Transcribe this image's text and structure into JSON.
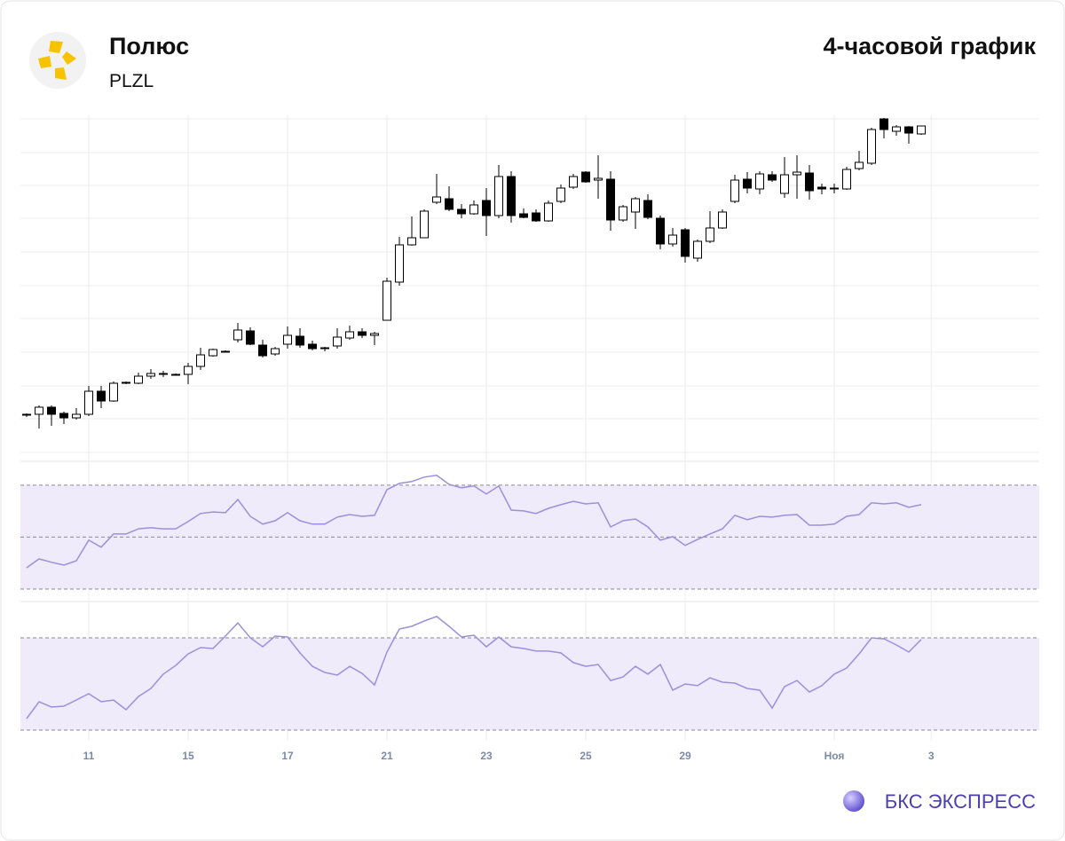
{
  "header": {
    "title": "Полюс",
    "ticker": "PLZL",
    "period": "4-часовой график"
  },
  "footer": {
    "brand": "БКС ЭКСПРЕСС"
  },
  "chart_data": [
    {
      "type": "candlestick",
      "up_color": "#ffffff",
      "down_color": "#000000",
      "xlim": [
        -0.5,
        81.5
      ],
      "ylim": [
        0,
        385
      ],
      "ygrid": [
        5,
        43,
        80,
        118,
        156,
        193,
        231,
        269,
        306,
        343,
        381
      ],
      "open": [
        48,
        48,
        56,
        49,
        44,
        48,
        74,
        63,
        83,
        83,
        91,
        93,
        93,
        93,
        102,
        114,
        119,
        132,
        142,
        126,
        116,
        127,
        136,
        127,
        122,
        125,
        134,
        141,
        137,
        154,
        197,
        239,
        247,
        287,
        291,
        279,
        274,
        289,
        272,
        316,
        274,
        275,
        266,
        288,
        304,
        321,
        312,
        313,
        267,
        276,
        289,
        269,
        240,
        256,
        224,
        243,
        258,
        288,
        313,
        302,
        318,
        297,
        318,
        320,
        304,
        302,
        302,
        325,
        331,
        381,
        367,
        372,
        364
      ],
      "high": [
        49,
        58,
        58,
        51,
        55,
        80,
        80,
        85,
        85,
        95,
        99,
        97,
        94,
        106,
        123,
        122,
        120,
        151,
        146,
        132,
        124,
        147,
        145,
        131,
        124,
        145,
        148,
        145,
        141,
        202,
        248,
        271,
        279,
        319,
        305,
        285,
        289,
        303,
        329,
        322,
        280,
        279,
        289,
        307,
        319,
        322,
        340,
        322,
        284,
        293,
        296,
        272,
        258,
        258,
        245,
        277,
        279,
        318,
        321,
        322,
        322,
        338,
        340,
        329,
        308,
        308,
        327,
        345,
        371,
        382,
        374,
        373,
        373
      ],
      "low": [
        45,
        32,
        35,
        37,
        42,
        46,
        55,
        62,
        82,
        82,
        88,
        90,
        92,
        82,
        98,
        113,
        118,
        129,
        126,
        112,
        114,
        122,
        123,
        120,
        119,
        122,
        132,
        134,
        126,
        154,
        193,
        238,
        247,
        285,
        277,
        269,
        273,
        249,
        269,
        264,
        269,
        265,
        265,
        286,
        302,
        309,
        291,
        255,
        265,
        257,
        268,
        234,
        237,
        219,
        220,
        241,
        257,
        286,
        297,
        296,
        310,
        292,
        291,
        290,
        296,
        297,
        301,
        323,
        329,
        359,
        362,
        353,
        363
      ],
      "close": [
        47,
        56,
        48,
        44,
        48,
        74,
        63,
        83,
        84,
        91,
        94,
        94,
        93,
        102,
        115,
        121,
        119,
        143,
        127,
        114,
        122,
        137,
        126,
        122,
        123,
        135,
        141,
        137,
        139,
        198,
        239,
        247,
        277,
        293,
        279,
        274,
        284,
        272,
        316,
        272,
        270,
        266,
        286,
        303,
        316,
        310,
        314,
        267,
        282,
        291,
        270,
        240,
        250,
        226,
        243,
        258,
        276,
        312,
        303,
        319,
        312,
        318,
        321,
        300,
        302,
        303,
        324,
        332,
        369,
        369,
        372,
        365,
        373
      ]
    },
    {
      "type": "line",
      "color": "#9d8fdb",
      "band_color": "#efebfb",
      "xlim": [
        -0.5,
        81.5
      ],
      "ylim": [
        25.2,
        79.2
      ],
      "levels": [
        30,
        50,
        70
      ],
      "values": [
        38.2,
        41.6,
        40.3,
        39.2,
        40.9,
        48.8,
        46.1,
        51.2,
        51.2,
        53.2,
        53.6,
        53.2,
        53.2,
        56.0,
        59.1,
        59.7,
        59.4,
        64.5,
        58.0,
        55.0,
        56.3,
        59.4,
        56.3,
        55.0,
        55.0,
        57.7,
        58.7,
        58.0,
        58.4,
        68.3,
        70.7,
        71.4,
        73.1,
        73.8,
        70.3,
        69.0,
        69.7,
        66.6,
        69.7,
        60.4,
        60.1,
        59.1,
        61.1,
        62.5,
        63.8,
        62.8,
        63.2,
        53.9,
        56.3,
        57.0,
        53.9,
        48.8,
        50.2,
        46.8,
        49.1,
        51.2,
        53.2,
        58.4,
        56.7,
        58.0,
        57.7,
        58.4,
        58.7,
        54.6,
        54.6,
        55.0,
        58.0,
        58.7,
        63.2,
        62.8,
        63.2,
        61.5,
        62.5
      ]
    },
    {
      "type": "line",
      "color": "#9d8fdb",
      "band_color": "#efebfb",
      "xlim": [
        -0.5,
        81.5
      ],
      "ylim": [
        13.1,
        103.1
      ],
      "levels": [
        20,
        80
      ],
      "xticks": [
        {
          "value": 5,
          "label": "11"
        },
        {
          "value": 13,
          "label": "15"
        },
        {
          "value": 21,
          "label": "17"
        },
        {
          "value": 29,
          "label": "21"
        },
        {
          "value": 37,
          "label": "23"
        },
        {
          "value": 45,
          "label": "25"
        },
        {
          "value": 53,
          "label": "29"
        },
        {
          "value": 65,
          "label": "Ноя"
        },
        {
          "value": 72.8,
          "label": "3"
        }
      ],
      "values": [
        27.5,
        38.5,
        35.0,
        35.6,
        39.6,
        43.7,
        38.5,
        39.6,
        33.3,
        41.9,
        47.1,
        56.4,
        62.1,
        69.6,
        73.7,
        73.1,
        81.2,
        89.8,
        80.0,
        74.2,
        81.2,
        80.6,
        70.2,
        61.5,
        57.5,
        55.8,
        61.5,
        56.9,
        49.4,
        70.8,
        85.8,
        87.5,
        91.0,
        93.9,
        87.5,
        80.6,
        81.7,
        74.2,
        80.6,
        74.2,
        73.1,
        71.4,
        71.4,
        70.2,
        63.9,
        61.5,
        62.7,
        52.3,
        54.6,
        61.5,
        56.4,
        62.7,
        46.0,
        50.0,
        48.9,
        54.0,
        51.2,
        50.6,
        47.1,
        46.0,
        34.4,
        48.3,
        52.3,
        44.8,
        48.9,
        56.4,
        60.4,
        69.6,
        80.0,
        79.4,
        75.4,
        70.8,
        78.9
      ]
    }
  ]
}
